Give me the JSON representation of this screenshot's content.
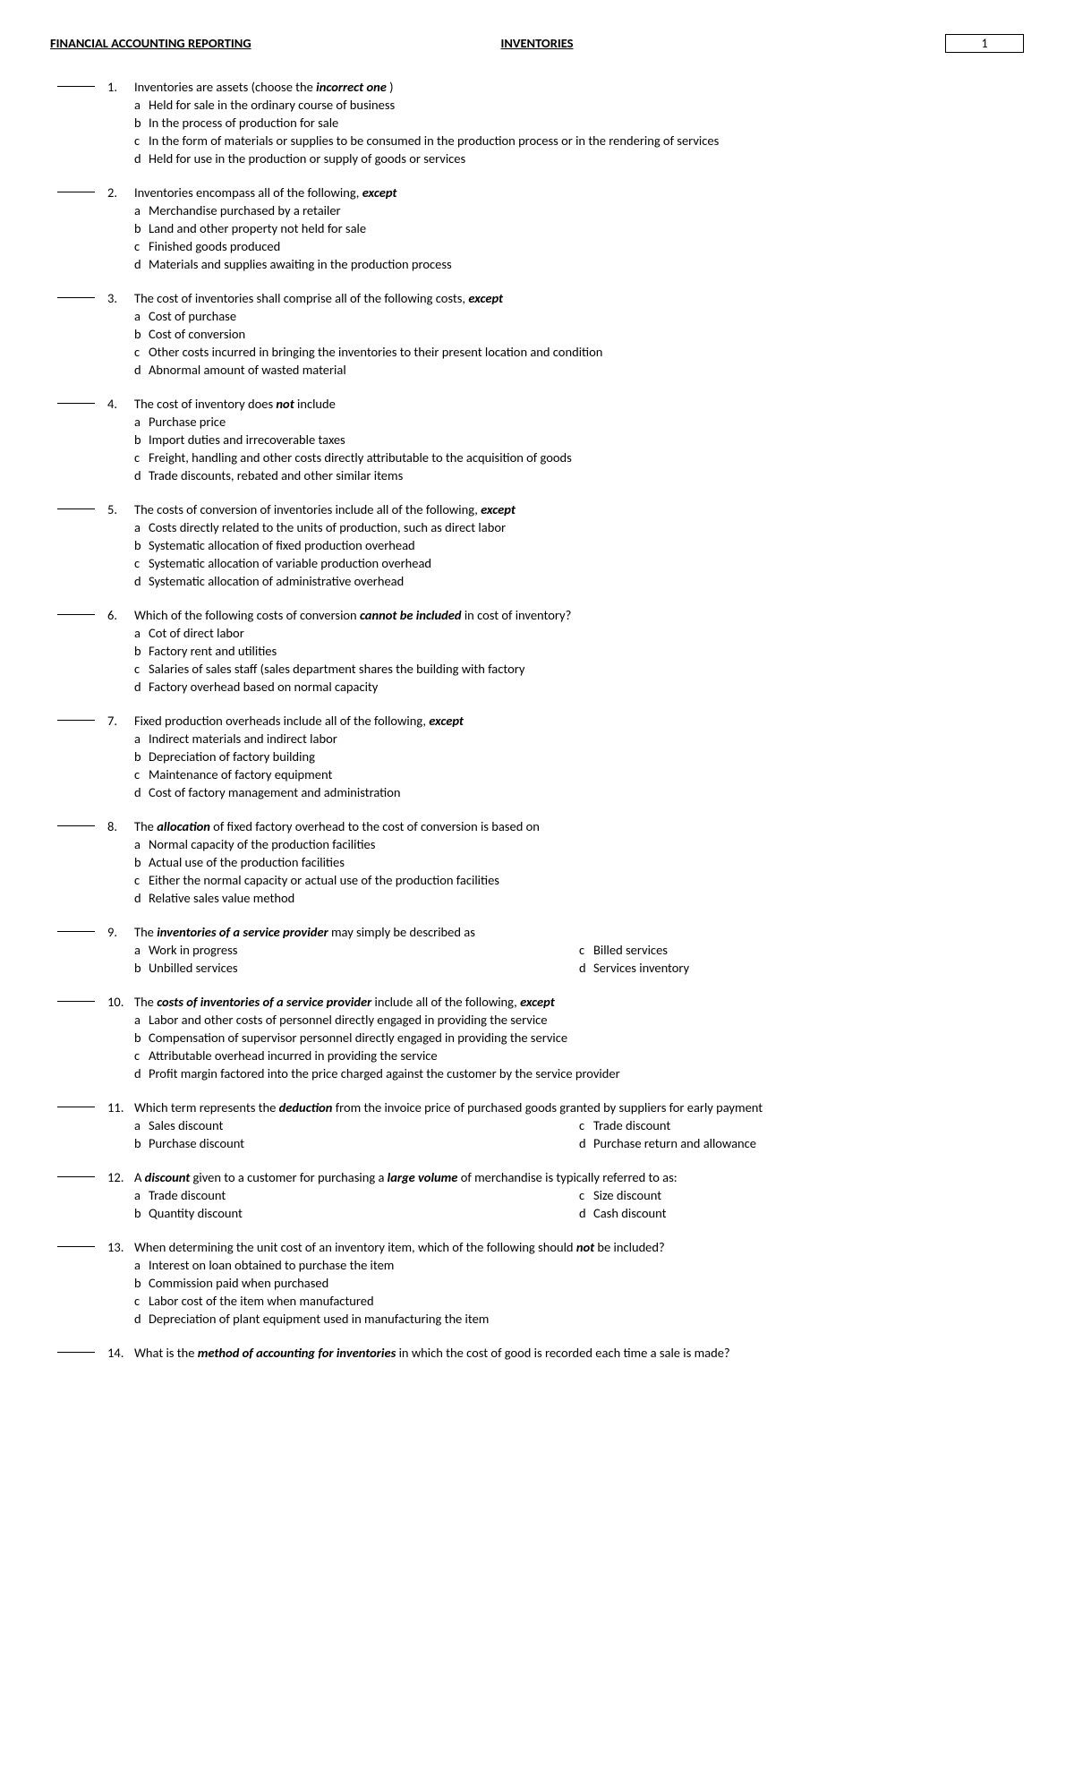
{
  "header": {
    "left": "FINANCIAL ACCOUNTING REPORTING",
    "center": "INVENTORIES",
    "page": "1"
  },
  "questions": [
    {
      "num": "1.",
      "pre": "Inventories are assets (choose the ",
      "em": "incorrect one",
      "post": " )",
      "opts": [
        {
          "l": "a",
          "t": "Held for sale in the ordinary course of business"
        },
        {
          "l": "b",
          "t": "In the process of production for sale"
        },
        {
          "l": "c",
          "t": "In the form of materials or supplies to be consumed in the production process or in the rendering of services"
        },
        {
          "l": "d",
          "t": "Held for use in the production or supply of goods or services"
        }
      ]
    },
    {
      "num": "2.",
      "pre": "Inventories encompass all of the following, ",
      "em": "except",
      "post": "",
      "opts": [
        {
          "l": "a",
          "t": "Merchandise purchased by a retailer"
        },
        {
          "l": "b",
          "t": "Land and other property not held for sale"
        },
        {
          "l": "c",
          "t": "Finished goods produced"
        },
        {
          "l": "d",
          "t": "Materials and supplies awaiting in the production process"
        }
      ]
    },
    {
      "num": "3.",
      "pre": "The cost of inventories shall comprise all of the following costs, ",
      "em": "except",
      "post": "",
      "opts": [
        {
          "l": "a",
          "t": "Cost of purchase"
        },
        {
          "l": "b",
          "t": "Cost of conversion"
        },
        {
          "l": "c",
          "t": "Other costs incurred in bringing the inventories to their present location and condition"
        },
        {
          "l": "d",
          "t": "Abnormal amount of wasted material"
        }
      ]
    },
    {
      "num": "4.",
      "pre": "The cost of inventory does ",
      "em": "not",
      "post": " include",
      "opts": [
        {
          "l": "a",
          "t": "Purchase price"
        },
        {
          "l": "b",
          "t": "Import duties and irrecoverable taxes"
        },
        {
          "l": "c",
          "t": "Freight, handling and other costs directly attributable to the acquisition of goods"
        },
        {
          "l": "d",
          "t": "Trade discounts, rebated and other similar items"
        }
      ]
    },
    {
      "num": "5.",
      "pre": "The costs of conversion of inventories include all of the following, ",
      "em": "except",
      "post": "",
      "opts": [
        {
          "l": "a",
          "t": "Costs directly related to the units of production, such as direct labor"
        },
        {
          "l": "b",
          "t": "Systematic allocation of fixed production overhead"
        },
        {
          "l": "c",
          "t": "Systematic allocation of variable production overhead"
        },
        {
          "l": "d",
          "t": "Systematic allocation of administrative overhead"
        }
      ]
    },
    {
      "num": "6.",
      "pre": "Which of the following costs of conversion ",
      "em": "cannot be included",
      "post": "  in cost of inventory?",
      "opts": [
        {
          "l": "a",
          "t": "Cot of direct labor"
        },
        {
          "l": "b",
          "t": "Factory rent and utilities"
        },
        {
          "l": "c",
          "t": "Salaries of sales staff (sales department shares the building with factory"
        },
        {
          "l": "d",
          "t": "Factory overhead based on normal capacity"
        }
      ]
    },
    {
      "num": "7.",
      "pre": "Fixed production overheads include all of the following, ",
      "em": "except",
      "post": "",
      "opts": [
        {
          "l": "a",
          "t": "Indirect materials and indirect labor"
        },
        {
          "l": "b",
          "t": "Depreciation of factory building"
        },
        {
          "l": "c",
          "t": "Maintenance of factory equipment"
        },
        {
          "l": "d",
          "t": "Cost of factory management and administration"
        }
      ]
    },
    {
      "num": "8.",
      "pre": "The ",
      "em": "allocation",
      "post": "  of fixed factory overhead to the cost of conversion is based on",
      "opts": [
        {
          "l": "a",
          "t": "Normal capacity of the production facilities"
        },
        {
          "l": "b",
          "t": "Actual use of the production facilities"
        },
        {
          "l": "c",
          "t": "Either the normal capacity or actual use of the production facilities"
        },
        {
          "l": "d",
          "t": "Relative sales value method"
        }
      ]
    },
    {
      "num": "9.",
      "pre": "The ",
      "em": "inventories of a service provider",
      "post": "  may simply be described as",
      "twoCol": true,
      "left": [
        {
          "l": "a",
          "t": "Work in progress"
        },
        {
          "l": "b",
          "t": "Unbilled services"
        }
      ],
      "right": [
        {
          "l": "c",
          "t": "Billed services"
        },
        {
          "l": "d",
          "t": "Services inventory"
        }
      ]
    },
    {
      "num": "10.",
      "pre": "The ",
      "em": "costs of inventories of a service provider",
      "post": "  include all of the following, ",
      "em2": "except",
      "opts": [
        {
          "l": "a",
          "t": "Labor and other costs of personnel directly engaged in providing the service"
        },
        {
          "l": "b",
          "t": "Compensation of supervisor personnel directly engaged in providing the service"
        },
        {
          "l": "c",
          "t": "Attributable overhead incurred in providing the service"
        },
        {
          "l": "d",
          "t": "Profit margin  factored into the price charged against the customer by the service provider"
        }
      ]
    },
    {
      "num": "11.",
      "pre": "Which term represents the ",
      "em": "deduction",
      "post": "  from the invoice price of purchased goods granted by suppliers for early payment",
      "hang": true,
      "twoCol": true,
      "left": [
        {
          "l": "a",
          "t": "Sales discount"
        },
        {
          "l": "b",
          "t": "Purchase discount"
        }
      ],
      "right": [
        {
          "l": "c",
          "t": "Trade discount"
        },
        {
          "l": "d",
          "t": "Purchase return and allowance"
        }
      ]
    },
    {
      "num": "12.",
      "pre": "A ",
      "em": "discount",
      "post": "  given to a customer for purchasing a ",
      "em2": "large volume",
      "post2": "  of merchandise is typically referred to as:",
      "twoCol": true,
      "left": [
        {
          "l": "a",
          "t": "Trade discount"
        },
        {
          "l": "b",
          "t": "Quantity discount"
        }
      ],
      "right": [
        {
          "l": "c",
          "t": "Size discount"
        },
        {
          "l": "d",
          "t": "Cash discount"
        }
      ]
    },
    {
      "num": "13.",
      "pre": "When determining the unit cost of an inventory item, which of the following should ",
      "em": "not",
      "post": "  be included?",
      "opts": [
        {
          "l": "a",
          "t": "Interest on loan obtained to purchase the item"
        },
        {
          "l": "b",
          "t": "Commission paid when purchased"
        },
        {
          "l": "c",
          "t": "Labor cost of the item when manufactured"
        },
        {
          "l": "d",
          "t": "Depreciation of plant equipment used in manufacturing the item"
        }
      ]
    },
    {
      "num": "14.",
      "pre": "What is the ",
      "em": "method of accounting for inventories",
      "post": "  in which the cost of good is recorded each time a sale is made?",
      "hang": true,
      "opts": []
    }
  ]
}
